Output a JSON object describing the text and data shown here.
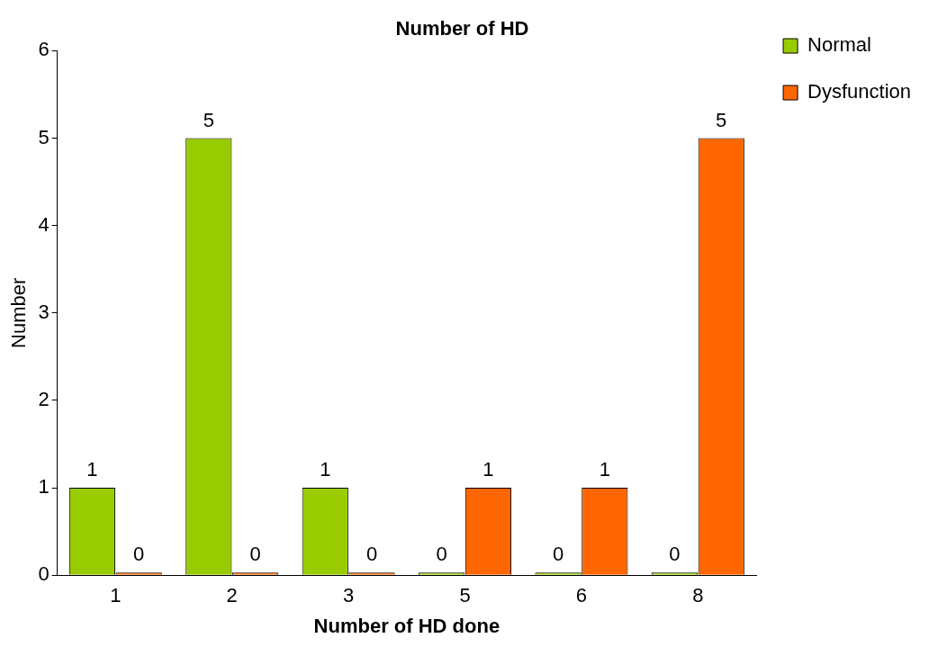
{
  "chart_data": {
    "type": "bar",
    "title": "Number of HD",
    "xlabel": "Number of HD done",
    "ylabel": "Number",
    "categories": [
      "1",
      "2",
      "3",
      "5",
      "6",
      "8"
    ],
    "series": [
      {
        "name": "Normal",
        "color": "#99cc00",
        "values": [
          1,
          5,
          1,
          0,
          0,
          0
        ]
      },
      {
        "name": "Dysfunction",
        "color": "#ff6600",
        "values": [
          0,
          0,
          0,
          1,
          1,
          5
        ]
      }
    ],
    "ylim": [
      0,
      6
    ],
    "yticks": [
      0,
      1,
      2,
      3,
      4,
      5,
      6
    ],
    "grid": false,
    "legend": "top right",
    "data_labels": true
  }
}
